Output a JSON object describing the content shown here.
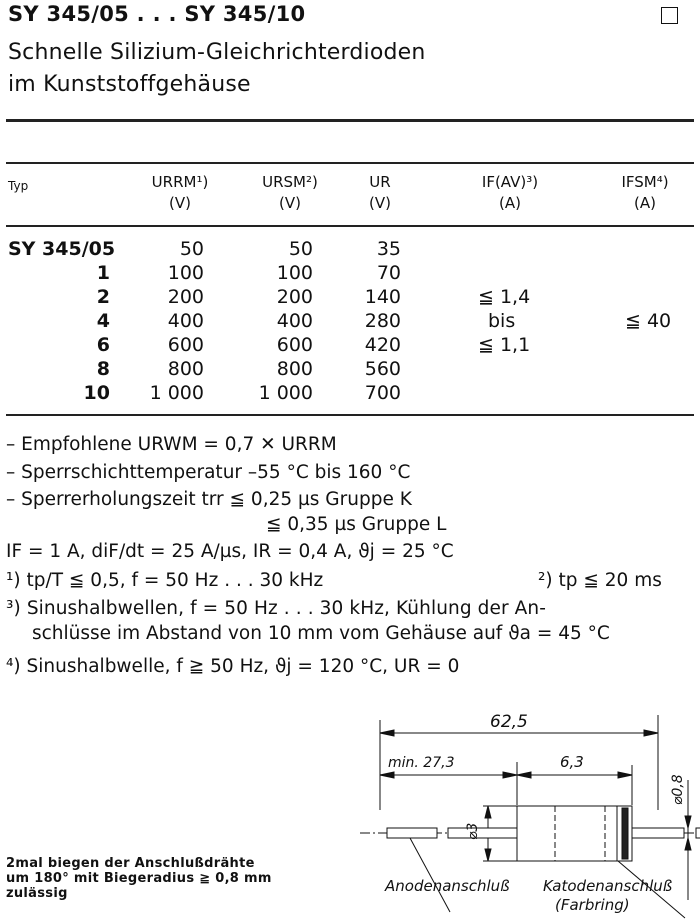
{
  "header": {
    "title": "SY 345/05 . . . SY 345/10",
    "subtitle_line1": "Schnelle Silizium-Gleichrichterdioden",
    "subtitle_line2": "im Kunststoffgehäuse"
  },
  "table": {
    "columns": [
      {
        "label": "Typ",
        "unit": ""
      },
      {
        "label": "URRM¹)",
        "unit": "(V)"
      },
      {
        "label": "URSM²)",
        "unit": "(V)"
      },
      {
        "label": "UR",
        "unit": "(V)"
      },
      {
        "label": "IF(AV)³)",
        "unit": "(A)"
      },
      {
        "label": "IFSM⁴)",
        "unit": "(A)"
      }
    ],
    "rows": [
      {
        "typ": "SY 345/05",
        "urrm": "50",
        "ursm": "50",
        "ur": "35"
      },
      {
        "typ": "1",
        "urrm": "100",
        "ursm": "100",
        "ur": "70"
      },
      {
        "typ": "2",
        "urrm": "200",
        "ursm": "200",
        "ur": "140"
      },
      {
        "typ": "4",
        "urrm": "400",
        "ursm": "400",
        "ur": "280"
      },
      {
        "typ": "6",
        "urrm": "600",
        "ursm": "600",
        "ur": "420"
      },
      {
        "typ": "8",
        "urrm": "800",
        "ursm": "800",
        "ur": "560"
      },
      {
        "typ": "10",
        "urrm": "1 000",
        "ursm": "1 000",
        "ur": "700"
      }
    ],
    "ifav": [
      "≦ 1,4",
      "bis",
      "≦ 1,1"
    ],
    "ifsm": "≦ 40"
  },
  "notes": {
    "line1": "– Empfohlene URWM = 0,7 ✕ URRM",
    "line2": "– Sperrschichttemperatur –55 °C bis 160 °C",
    "line3": "– Sperrerholungszeit trr ≦ 0,25 µs Gruppe K",
    "line4": "≦ 0,35 µs Gruppe L",
    "line5": "IF = 1 A, diF/dt = 25 A/µs, IR = 0,4 A, ϑj = 25 °C",
    "fn1": "¹) tp/T ≦ 0,5, f = 50 Hz . . . 30 kHz",
    "fn2": "²) tp ≦ 20 ms",
    "fn3a": "³) Sinushalbwellen,   f = 50 Hz . . . 30 kHz,  Kühlung  der  An-",
    "fn3b": "schlüsse im Abstand von 10 mm vom Gehäuse auf ϑa = 45 °C",
    "fn4": "⁴) Sinushalbwelle, f ≧ 50 Hz, ϑj = 120 °C, UR = 0"
  },
  "bending_note": [
    "2mal biegen der Anschlußdrähte",
    "um 180° mit Biegeradius ≧ 0,8 mm",
    "zulässig"
  ],
  "diagram": {
    "total_length": "62,5",
    "min_lead": "min. 27,3",
    "body_length": "6,3",
    "body_diameter": "⌀3",
    "lead_diameter": "⌀0,8",
    "anode_label": "Anodenanschluß",
    "cathode_label": "Katodenanschluß",
    "cathode_sub": "(Farbring)"
  }
}
